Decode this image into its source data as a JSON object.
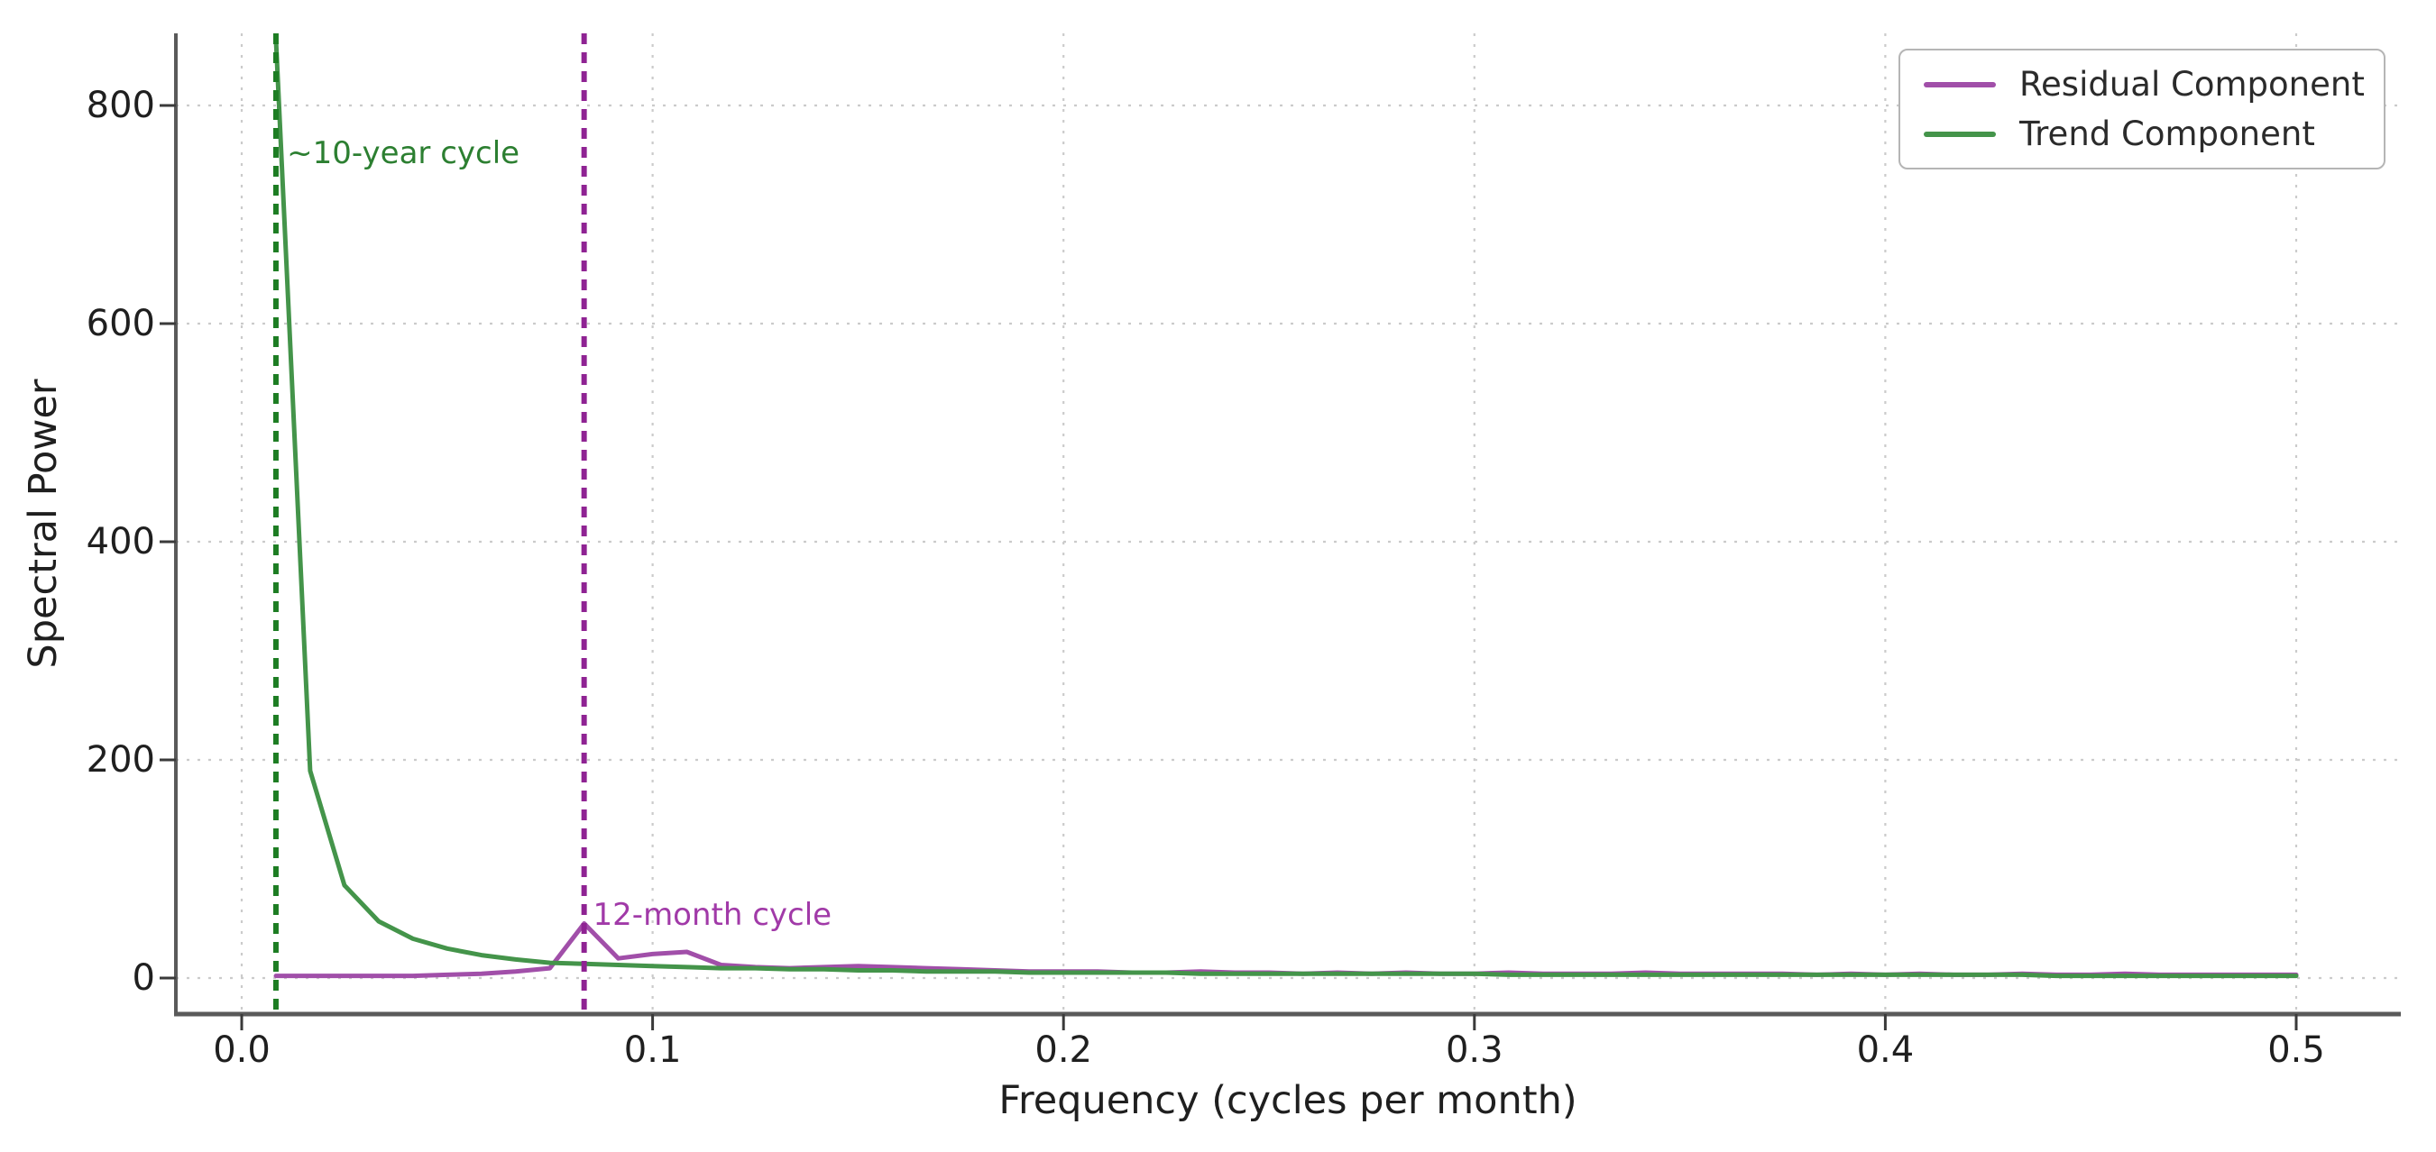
{
  "chart_data": {
    "type": "line",
    "title": "",
    "xlabel": "Frequency (cycles per month)",
    "ylabel": "Spectral Power",
    "xlim": [
      -0.016,
      0.526
    ],
    "ylim": [
      -35,
      866
    ],
    "grid": true,
    "grid_style": "dotted",
    "legend_position": "upper right",
    "x_ticks": [
      {
        "value": 0.0,
        "label": "0.0"
      },
      {
        "value": 0.1,
        "label": "0.1"
      },
      {
        "value": 0.2,
        "label": "0.2"
      },
      {
        "value": 0.3,
        "label": "0.3"
      },
      {
        "value": 0.4,
        "label": "0.4"
      },
      {
        "value": 0.5,
        "label": "0.5"
      }
    ],
    "y_ticks": [
      {
        "value": 0,
        "label": "0"
      },
      {
        "value": 200,
        "label": "200"
      },
      {
        "value": 400,
        "label": "400"
      },
      {
        "value": 600,
        "label": "600"
      },
      {
        "value": 800,
        "label": "800"
      }
    ],
    "x": [
      0.00833,
      0.01667,
      0.025,
      0.03333,
      0.04167,
      0.05,
      0.05833,
      0.06667,
      0.075,
      0.08333,
      0.09167,
      0.1,
      0.10833,
      0.11667,
      0.125,
      0.13333,
      0.14167,
      0.15,
      0.15833,
      0.16667,
      0.175,
      0.18333,
      0.19167,
      0.2,
      0.20833,
      0.21667,
      0.225,
      0.23333,
      0.24167,
      0.25,
      0.25833,
      0.26667,
      0.275,
      0.28333,
      0.29167,
      0.3,
      0.30833,
      0.31667,
      0.325,
      0.33333,
      0.34167,
      0.35,
      0.35833,
      0.36667,
      0.375,
      0.38333,
      0.39167,
      0.4,
      0.40833,
      0.41667,
      0.425,
      0.43333,
      0.44167,
      0.45,
      0.45833,
      0.46667,
      0.475,
      0.48333,
      0.49167,
      0.5
    ],
    "series": [
      {
        "name": "Residual Component",
        "color": "#a14fa9",
        "values": [
          2,
          2,
          2,
          2,
          2,
          3,
          4,
          6,
          9,
          50,
          18,
          22,
          24,
          12,
          10,
          9,
          10,
          11,
          10,
          9,
          8,
          7,
          6,
          6,
          6,
          5,
          5,
          6,
          5,
          5,
          4,
          5,
          4,
          5,
          4,
          4,
          5,
          4,
          4,
          4,
          5,
          4,
          4,
          4,
          4,
          3,
          4,
          3,
          4,
          3,
          3,
          4,
          3,
          3,
          4,
          3,
          3,
          3,
          3,
          3
        ]
      },
      {
        "name": "Trend Component",
        "color": "#44944a",
        "values": [
          860,
          190,
          85,
          52,
          36,
          27,
          21,
          17,
          14,
          13,
          12,
          11,
          10,
          9,
          9,
          8,
          8,
          7,
          7,
          6,
          6,
          6,
          5,
          5,
          5,
          5,
          5,
          4,
          4,
          4,
          4,
          4,
          4,
          4,
          4,
          4,
          3,
          3,
          3,
          3,
          3,
          3,
          3,
          3,
          3,
          3,
          3,
          3,
          3,
          3,
          3,
          3,
          2,
          2,
          2,
          2,
          2,
          2,
          2,
          2
        ]
      }
    ],
    "vlines": [
      {
        "x": 0.00833,
        "color": "#1d7d23",
        "style": "dashed"
      },
      {
        "x": 0.08333,
        "color": "#8f2393",
        "style": "dashed"
      }
    ],
    "annotations": [
      {
        "text": "~10-year cycle",
        "x": 0.011,
        "y": 756,
        "color": "#2c7f31"
      },
      {
        "text": "12-month cycle",
        "x": 0.0855,
        "y": 58,
        "color": "#a13aa8"
      }
    ]
  },
  "legend": {
    "entries": [
      {
        "label": "Residual Component",
        "color": "#a14fa9"
      },
      {
        "label": "Trend Component",
        "color": "#44944a"
      }
    ]
  },
  "colors": {
    "background": "#ffffff",
    "grid": "#cbcbcb",
    "spine": "#5a5a5a",
    "tick": "#3a3a3a",
    "tick_label": "#1f1f1f",
    "legend_border": "#b5b5b5"
  }
}
